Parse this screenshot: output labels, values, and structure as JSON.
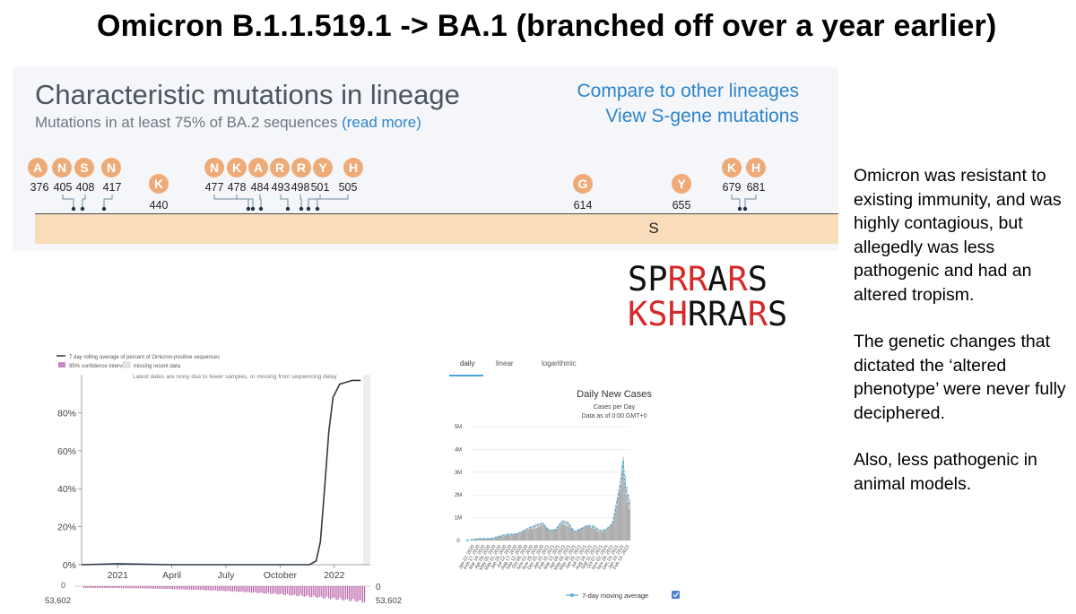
{
  "slide": {
    "title": "Omicron B.1.1.519.1 -> BA.1 (branched off over a year earlier)"
  },
  "lineage_panel": {
    "heading": "Characteristic mutations in lineage",
    "subheading": "Mutations in at least 75% of BA.2 sequences",
    "read_more": "(read more)",
    "compare_link": "Compare to other lineages",
    "sgene_link": "View S-gene mutations",
    "gene_label": "S",
    "badge_color": "#eeaa77",
    "mutations": [
      {
        "aa": "A",
        "pos": "376"
      },
      {
        "aa": "N",
        "pos": "405"
      },
      {
        "aa": "S",
        "pos": "408"
      },
      {
        "aa": "N",
        "pos": "417"
      },
      {
        "aa": "K",
        "pos": "440"
      },
      {
        "aa": "N",
        "pos": "477"
      },
      {
        "aa": "K",
        "pos": "478"
      },
      {
        "aa": "A",
        "pos": "484"
      },
      {
        "aa": "R",
        "pos": "493"
      },
      {
        "aa": "R",
        "pos": "498"
      },
      {
        "aa": "Y",
        "pos": "501"
      },
      {
        "aa": "H",
        "pos": "505"
      },
      {
        "aa": "G",
        "pos": "614"
      },
      {
        "aa": "Y",
        "pos": "655"
      },
      {
        "aa": "K",
        "pos": "679"
      },
      {
        "aa": "H",
        "pos": "681"
      }
    ]
  },
  "aa_sequences": {
    "red_color": "#d62a2a",
    "rows": [
      [
        {
          "ch": "S",
          "red": false
        },
        {
          "ch": "P",
          "red": false
        },
        {
          "ch": "R",
          "red": true
        },
        {
          "ch": "R",
          "red": true
        },
        {
          "ch": "A",
          "red": false
        },
        {
          "ch": "R",
          "red": true
        },
        {
          "ch": "S",
          "red": false
        }
      ],
      [
        {
          "ch": "K",
          "red": true
        },
        {
          "ch": "S",
          "red": true
        },
        {
          "ch": "H",
          "red": true
        },
        {
          "ch": "R",
          "red": false
        },
        {
          "ch": "R",
          "red": false
        },
        {
          "ch": "A",
          "red": false
        },
        {
          "ch": "R",
          "red": true
        },
        {
          "ch": "S",
          "red": false
        }
      ]
    ]
  },
  "side_text": {
    "p1": "Omicron was resistant to existing immunity, and was highly contagious, but allegedly was less pathogenic and had an altered tropism.",
    "p2": "The genetic changes that dictated the ‘altered phenotype’ were never fully deciphered.",
    "p3": "Also, less pathogenic in animal models."
  },
  "omicron_chart": {
    "legend_line": "7 day rolling average of percent of Omicron-positive sequences",
    "legend_ci": "95% confidence interval",
    "legend_missing": "missing recent data",
    "note": "Latest dates are noisy due to fewer samples, or missing from sequencing delay",
    "count_top_left": "0",
    "count_bottom_left": "53,602",
    "count_top_right": "0",
    "count_bottom_right": "53,602",
    "line_color": "#2e3a46",
    "bar_color": "#b0479b"
  },
  "cases_chart": {
    "tabs": [
      "daily",
      "linear",
      "logarithmic"
    ],
    "active_tab": "daily",
    "title": "Daily New Cases",
    "subtitle1": "Cases per Day",
    "subtitle2": "Data as of 0:00 GMT+0",
    "legend": "7-day moving average",
    "bar_color": "#999999",
    "line_color": "#5ab0d6"
  },
  "chart_data": [
    {
      "type": "line",
      "title": "",
      "x_ticks": [
        "2021",
        "April",
        "July",
        "October",
        "2022"
      ],
      "y_ticks": [
        "0%",
        "20%",
        "40%",
        "60%",
        "80%"
      ],
      "ylim": [
        0,
        100
      ],
      "series": [
        {
          "name": "7 day rolling average of percent of Omicron-positive sequences",
          "x": [
            "2020-11",
            "2021-01",
            "2021-04",
            "2021-07",
            "2021-10",
            "2021-11-20",
            "2021-12-01",
            "2021-12-08",
            "2021-12-15",
            "2021-12-22",
            "2021-12-29",
            "2022-01-10",
            "2022-02-01",
            "2022-02-15"
          ],
          "y": [
            0,
            0.5,
            0,
            0,
            0,
            0,
            2,
            12,
            40,
            70,
            88,
            95,
            97,
            97
          ]
        }
      ],
      "grid": false
    },
    {
      "type": "bar",
      "title": "Daily New Cases",
      "ylabel": "Cases per Day",
      "y_ticks": [
        "0",
        "1M",
        "2M",
        "3M",
        "4M",
        "5M"
      ],
      "ylim": [
        0,
        5000000
      ],
      "x_ticks": [
        "Jan 22, 2020",
        "Feb 17, 2020",
        "Mar 14, 2020",
        "Apr 09, 2020",
        "May 05, 2020",
        "May 31, 2020",
        "Jun 26, 2020",
        "Jul 22, 2020",
        "Aug 17, 2020",
        "Sep 12, 2020",
        "Oct 08, 2020",
        "Nov 03, 2020",
        "Nov 29, 2020",
        "Dec 25, 2020",
        "Jan 20, 2021",
        "Feb 15, 2021",
        "Mar 13, 2021",
        "Apr 08, 2021",
        "May 04, 2021",
        "May 30, 2021",
        "Jun 25, 2021",
        "Jul 21, 2021",
        "Aug 16, 2021",
        "Sep 11, 2021",
        "Oct 07, 2021",
        "Nov 02, 2021",
        "Nov 28, 2021",
        "Dec 24, 2021",
        "Jan 19, 2022",
        "Feb 14, 2022"
      ],
      "series": [
        {
          "name": "7-day moving average",
          "x": [
            "2020-01",
            "2020-03",
            "2020-05",
            "2020-07",
            "2020-09",
            "2020-11",
            "2021-01",
            "2021-02",
            "2021-03",
            "2021-04",
            "2021-05",
            "2021-06",
            "2021-08",
            "2021-09",
            "2021-10",
            "2021-11",
            "2021-12",
            "2022-01-10",
            "2022-01-20",
            "2022-02-01",
            "2022-02-20"
          ],
          "y": [
            0,
            80000,
            90000,
            250000,
            290000,
            560000,
            740000,
            450000,
            470000,
            820000,
            750000,
            380000,
            650000,
            600000,
            420000,
            480000,
            750000,
            2600000,
            3500000,
            2400000,
            1600000
          ]
        }
      ]
    }
  ]
}
